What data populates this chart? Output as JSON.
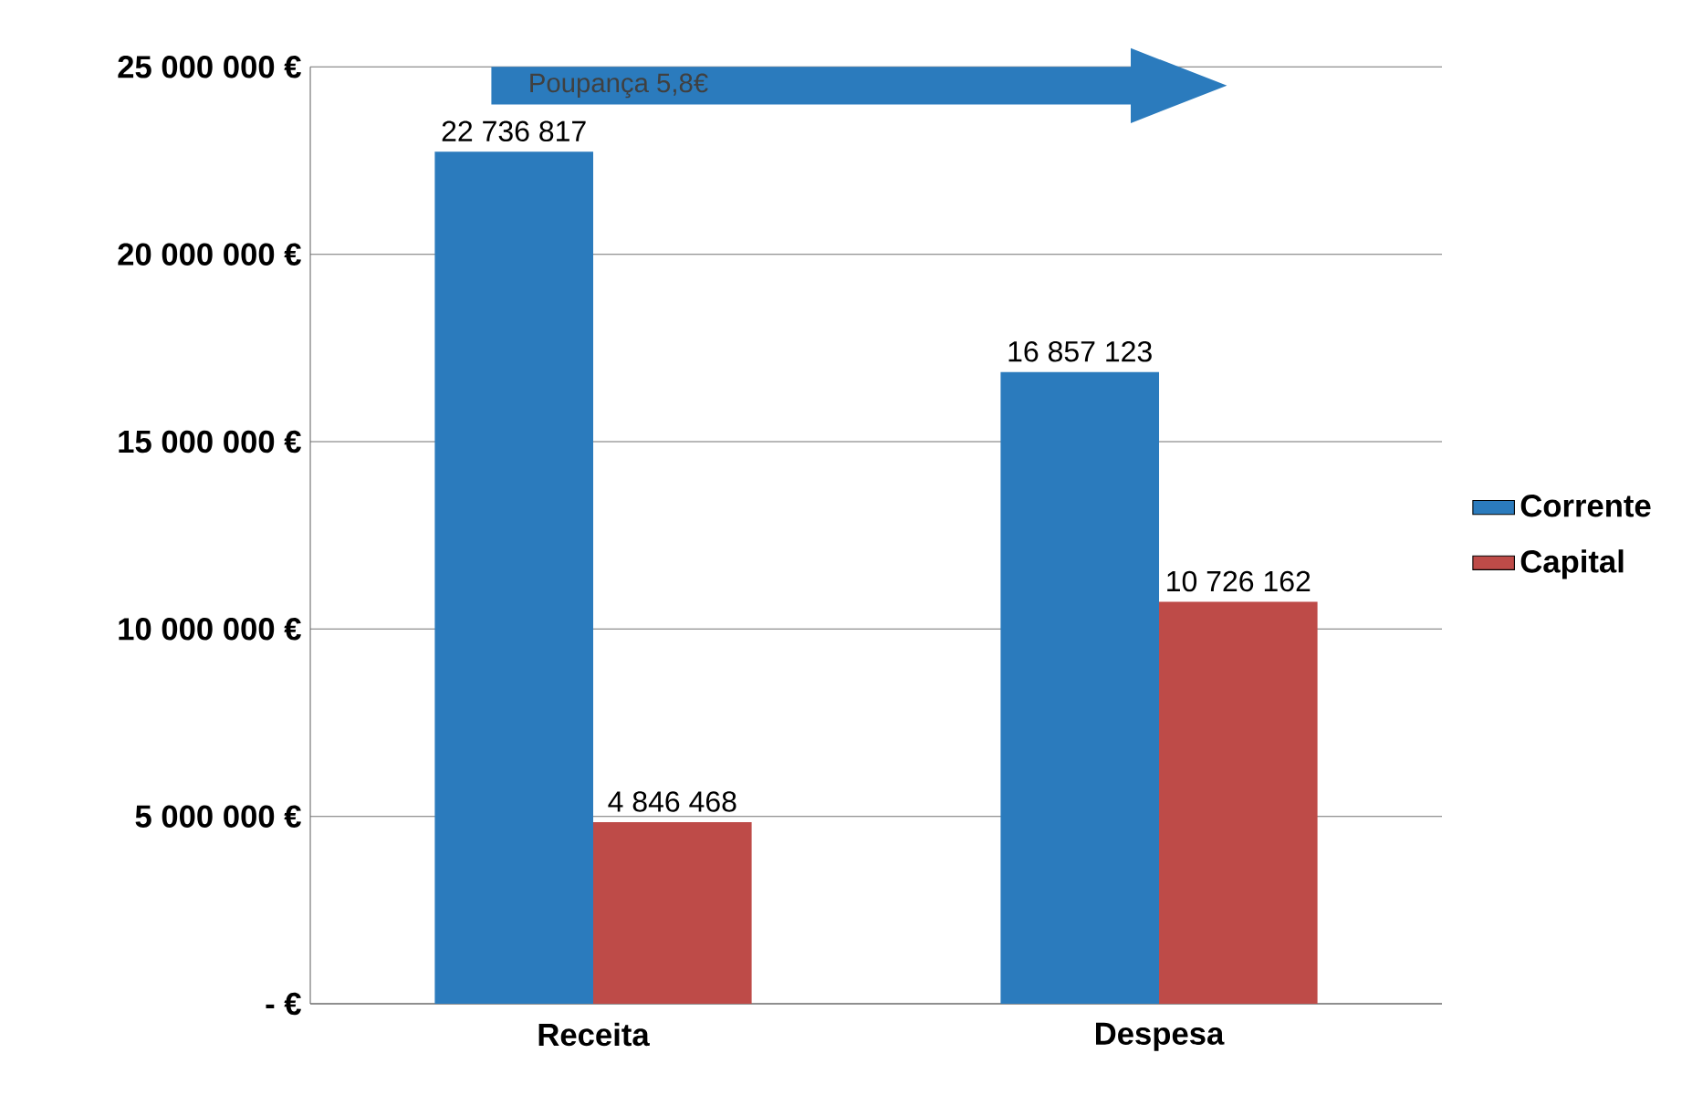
{
  "chart_data": {
    "type": "bar",
    "categories": [
      "Receita",
      "Despesa"
    ],
    "series": [
      {
        "name": "Corrente",
        "color": "#2b7bbd",
        "values": [
          22736817,
          16857123
        ],
        "value_labels": [
          "22 736 817",
          "16 857 123"
        ]
      },
      {
        "name": "Capital",
        "color": "#be4b48",
        "values": [
          4846468,
          10726162
        ],
        "value_labels": [
          "4 846 468",
          "10 726 162"
        ]
      }
    ],
    "ylim": [
      0,
      25000000
    ],
    "yticks": [
      {
        "value": 0,
        "label": "- €"
      },
      {
        "value": 5000000,
        "label": "5 000 000 €"
      },
      {
        "value": 10000000,
        "label": "10 000 000 €"
      },
      {
        "value": 15000000,
        "label": "15 000 000 €"
      },
      {
        "value": 20000000,
        "label": "20 000 000 €"
      },
      {
        "value": 25000000,
        "label": "25 000 000 €"
      }
    ],
    "grid": "y",
    "legend": "right",
    "annotations": [
      "Poupança 5,8€"
    ]
  }
}
